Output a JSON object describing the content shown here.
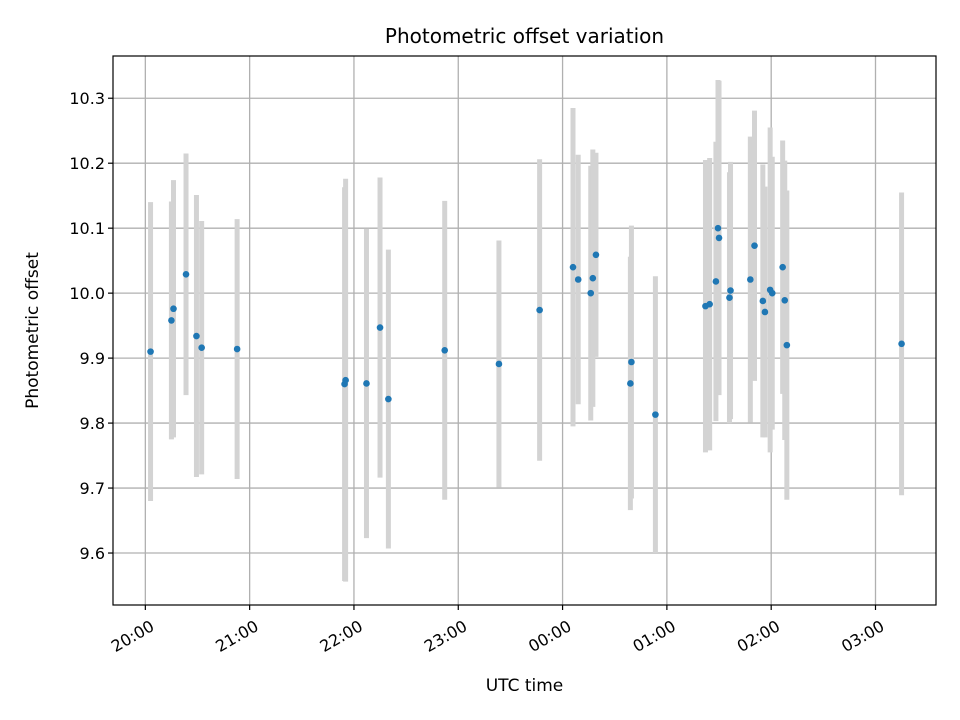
{
  "chart_data": {
    "type": "scatter",
    "title": "Photometric offset variation",
    "xlabel": "UTC time",
    "ylabel": "Photometric offset",
    "x_unit": "hours since 20:00 UTC",
    "xlim": [
      -0.31,
      7.58
    ],
    "ylim": [
      9.52,
      10.365
    ],
    "grid": true,
    "x_ticks": [
      {
        "value": 0,
        "label": "20:00"
      },
      {
        "value": 1,
        "label": "21:00"
      },
      {
        "value": 2,
        "label": "22:00"
      },
      {
        "value": 3,
        "label": "23:00"
      },
      {
        "value": 4,
        "label": "00:00"
      },
      {
        "value": 5,
        "label": "01:00"
      },
      {
        "value": 6,
        "label": "02:00"
      },
      {
        "value": 7,
        "label": "03:00"
      }
    ],
    "y_ticks": [
      {
        "value": 9.6,
        "label": "9.6"
      },
      {
        "value": 9.7,
        "label": "9.7"
      },
      {
        "value": 9.8,
        "label": "9.8"
      },
      {
        "value": 9.9,
        "label": "9.9"
      },
      {
        "value": 10.0,
        "label": "10.0"
      },
      {
        "value": 10.1,
        "label": "10.1"
      },
      {
        "value": 10.2,
        "label": "10.2"
      },
      {
        "value": 10.3,
        "label": "10.3"
      }
    ],
    "colors": {
      "point": "#1f77b4",
      "errorbar": "#d3d3d3",
      "grid": "#b0b0b0"
    },
    "series": [
      {
        "name": "offset",
        "points": [
          {
            "x": 0.05,
            "y": 9.91,
            "err": 0.23
          },
          {
            "x": 0.25,
            "y": 9.958,
            "err": 0.183
          },
          {
            "x": 0.27,
            "y": 9.976,
            "err": 0.198
          },
          {
            "x": 0.39,
            "y": 10.029,
            "err": 0.186
          },
          {
            "x": 0.49,
            "y": 9.934,
            "err": 0.217
          },
          {
            "x": 0.54,
            "y": 9.916,
            "err": 0.195
          },
          {
            "x": 0.88,
            "y": 9.914,
            "err": 0.2
          },
          {
            "x": 1.91,
            "y": 9.86,
            "err": 0.303
          },
          {
            "x": 1.92,
            "y": 9.866,
            "err": 0.31
          },
          {
            "x": 2.12,
            "y": 9.861,
            "err": 0.238
          },
          {
            "x": 2.25,
            "y": 9.947,
            "err": 0.231
          },
          {
            "x": 2.33,
            "y": 9.837,
            "err": 0.23
          },
          {
            "x": 2.87,
            "y": 9.912,
            "err": 0.23
          },
          {
            "x": 3.39,
            "y": 9.891,
            "err": 0.19
          },
          {
            "x": 3.78,
            "y": 9.974,
            "err": 0.232
          },
          {
            "x": 4.1,
            "y": 10.04,
            "err": 0.245
          },
          {
            "x": 4.15,
            "y": 10.021,
            "err": 0.192
          },
          {
            "x": 4.27,
            "y": 10.0,
            "err": 0.196
          },
          {
            "x": 4.29,
            "y": 10.023,
            "err": 0.198
          },
          {
            "x": 4.32,
            "y": 10.059,
            "err": 0.157
          },
          {
            "x": 4.65,
            "y": 9.861,
            "err": 0.195
          },
          {
            "x": 4.66,
            "y": 9.894,
            "err": 0.21
          },
          {
            "x": 4.89,
            "y": 9.813,
            "err": 0.213
          },
          {
            "x": 5.37,
            "y": 9.98,
            "err": 0.225
          },
          {
            "x": 5.41,
            "y": 9.983,
            "err": 0.225
          },
          {
            "x": 5.47,
            "y": 10.018,
            "err": 0.215
          },
          {
            "x": 5.49,
            "y": 10.1,
            "err": 0.228
          },
          {
            "x": 5.5,
            "y": 10.085,
            "err": 0.242
          },
          {
            "x": 5.6,
            "y": 9.993,
            "err": 0.193
          },
          {
            "x": 5.61,
            "y": 10.004,
            "err": 0.198
          },
          {
            "x": 5.8,
            "y": 10.021,
            "err": 0.22
          },
          {
            "x": 5.84,
            "y": 10.073,
            "err": 0.208
          },
          {
            "x": 5.92,
            "y": 9.988,
            "err": 0.21
          },
          {
            "x": 5.94,
            "y": 9.971,
            "err": 0.193
          },
          {
            "x": 5.99,
            "y": 10.005,
            "err": 0.25
          },
          {
            "x": 6.01,
            "y": 10.0,
            "err": 0.21
          },
          {
            "x": 6.11,
            "y": 10.04,
            "err": 0.195
          },
          {
            "x": 6.13,
            "y": 9.989,
            "err": 0.215
          },
          {
            "x": 6.15,
            "y": 9.92,
            "err": 0.238
          },
          {
            "x": 7.25,
            "y": 9.922,
            "err": 0.233
          }
        ]
      }
    ]
  }
}
